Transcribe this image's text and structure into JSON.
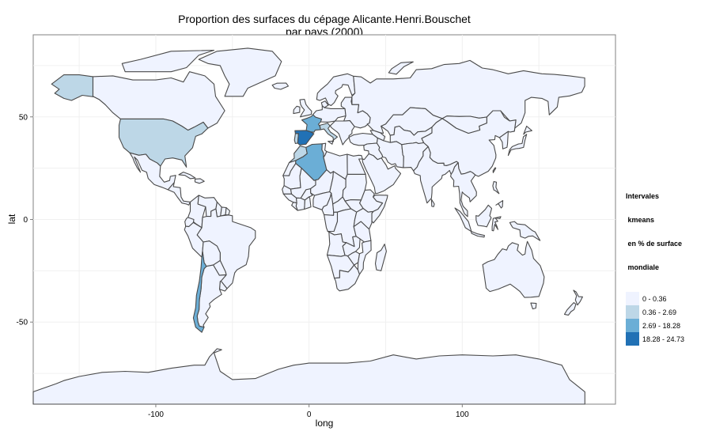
{
  "title": {
    "line1": "Proportion des surfaces du cépage Alicante.Henri.Bouschet",
    "line2": "par pays (2000)"
  },
  "axes": {
    "x_title": "long",
    "y_title": "lat",
    "x_ticks": [
      "-100",
      "0",
      "100"
    ],
    "y_ticks": [
      "50",
      "0",
      "-50"
    ]
  },
  "legend": {
    "title_lines": [
      "Intervales",
      " kmeans",
      " en % de surface",
      " mondiale"
    ],
    "items": [
      {
        "label": "0 - 0.36",
        "color": "#eff3ff"
      },
      {
        "label": "0.36 - 2.69",
        "color": "#bdd7e7"
      },
      {
        "label": "2.69 - 18.28",
        "color": "#6baed6"
      },
      {
        "label": "18.28 - 24.73",
        "color": "#2171b5"
      }
    ]
  },
  "chart_data": {
    "type": "map",
    "xlim": [
      -180,
      200
    ],
    "ylim": [
      -90,
      90
    ],
    "grid": true,
    "legend_position": "right",
    "regions": [
      {
        "name": "Spain",
        "class": "18.28 - 24.73"
      },
      {
        "name": "France",
        "class": "2.69 - 18.28"
      },
      {
        "name": "Algeria",
        "class": "2.69 - 18.28"
      },
      {
        "name": "Chile",
        "class": "2.69 - 18.28"
      },
      {
        "name": "United States",
        "class": "0.36 - 2.69"
      },
      {
        "name": "Alaska",
        "class": "0.36 - 2.69"
      },
      {
        "name": "Portugal",
        "class": "0.36 - 2.69"
      },
      {
        "name": "Morocco",
        "class": "0.36 - 2.69"
      },
      {
        "name": "Italy",
        "class": "0.36 - 2.69"
      }
    ]
  }
}
